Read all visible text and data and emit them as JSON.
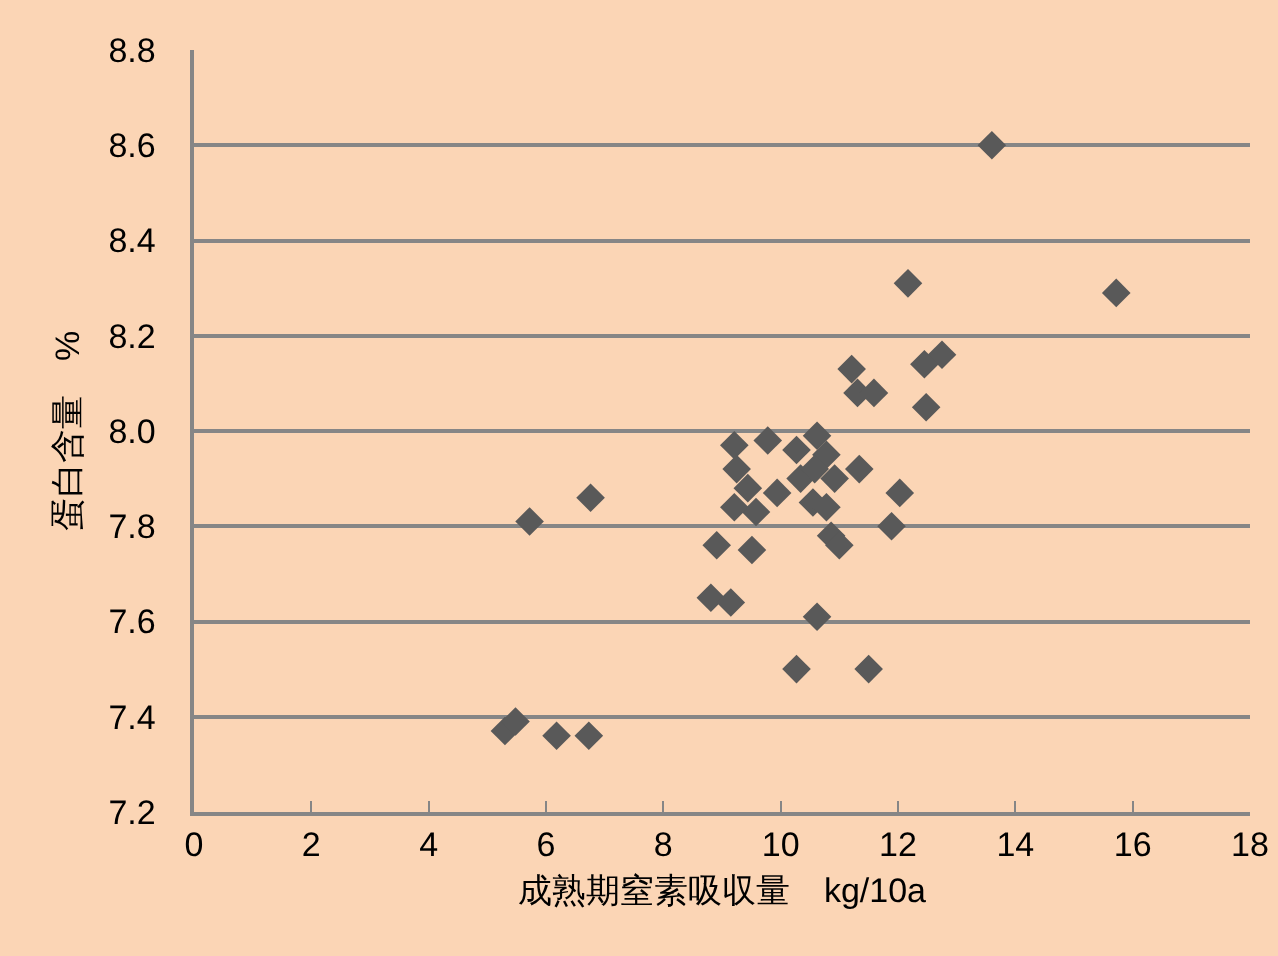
{
  "chart_data": {
    "type": "scatter",
    "xlabel": "成熟期窒素吸収量　kg/10a",
    "ylabel": "蛋白含量　%",
    "x": [
      13.6,
      12.17,
      15.72,
      12.75,
      12.45,
      11.21,
      11.31,
      11.59,
      12.48,
      9.21,
      9.78,
      10.27,
      10.62,
      10.78,
      9.25,
      11.34,
      10.34,
      10.58,
      10.92,
      9.44,
      9.94,
      9.58,
      9.21,
      10.55,
      10.78,
      12.03,
      6.76,
      5.72,
      11.89,
      8.91,
      9.51,
      10.86,
      11.0,
      8.81,
      9.15,
      10.62,
      10.27,
      11.5,
      5.3,
      5.48,
      6.18,
      6.73
    ],
    "values": [
      8.6,
      8.31,
      8.29,
      8.16,
      8.14,
      8.13,
      8.08,
      8.08,
      8.05,
      7.97,
      7.98,
      7.96,
      7.99,
      7.95,
      7.92,
      7.92,
      7.9,
      7.92,
      7.9,
      7.88,
      7.87,
      7.83,
      7.84,
      7.85,
      7.84,
      7.87,
      7.86,
      7.81,
      7.8,
      7.76,
      7.75,
      7.78,
      7.76,
      7.65,
      7.64,
      7.61,
      7.5,
      7.5,
      7.37,
      7.39,
      7.36,
      7.36
    ],
    "color": "#595959",
    "marker": "diamond",
    "grid": "y",
    "xlim": [
      0,
      18
    ],
    "xticks": [
      0,
      2,
      4,
      6,
      8,
      10,
      12,
      14,
      16,
      18
    ],
    "ylim": [
      7.2,
      8.8
    ],
    "yticks": [
      {
        "value": 7.2,
        "label": "7.2"
      },
      {
        "value": 7.4,
        "label": "7.4"
      },
      {
        "value": 7.6,
        "label": "7.6"
      },
      {
        "value": 7.8,
        "label": "7.8"
      },
      {
        "value": 8.0,
        "label": "8.0"
      },
      {
        "value": 8.2,
        "label": "8.2"
      },
      {
        "value": 8.4,
        "label": "8.4"
      },
      {
        "value": 8.6,
        "label": "8.6"
      },
      {
        "value": 8.8,
        "label": "8.8"
      }
    ]
  }
}
